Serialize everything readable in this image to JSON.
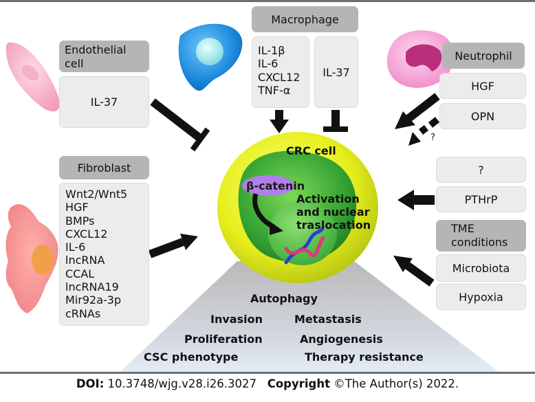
{
  "cells": {
    "endothelial": {
      "title": "Endothelial cell",
      "factors": [
        "IL-37"
      ]
    },
    "macrophage": {
      "title": "Macrophage",
      "factors_left": [
        "IL-1β",
        "IL-6",
        "CXCL12",
        "TNF-α"
      ],
      "factors_right": [
        "IL-37"
      ]
    },
    "neutrophil": {
      "title": "Neutrophil",
      "factors": [
        "HGF",
        "OPN"
      ],
      "unknown_mark": "?"
    },
    "fibroblast": {
      "title": "Fibroblast",
      "factors": [
        "Wnt2/Wnt5",
        "HGF",
        "BMPs",
        "CXCL12",
        "IL-6",
        "lncRNA",
        "CCAL",
        "lncRNA19",
        "Mir92a-3p",
        "cRNAs"
      ]
    },
    "unknown": {
      "title": "?",
      "factors": [
        "PTHrP"
      ]
    },
    "tme": {
      "title": "TME conditions",
      "factors": [
        "Microbiota",
        "Hypoxia"
      ]
    }
  },
  "crc": {
    "title": "CRC cell",
    "beta_catenin": "β-catenin",
    "activation": [
      "Activation",
      "and nuclear",
      "traslocation"
    ]
  },
  "outcomes": [
    "Autophagy",
    "Invasion",
    "Metastasis",
    "Proliferation",
    "Angiogenesis",
    "CSC phenotype",
    "Therapy resistance"
  ],
  "footer": {
    "doi_label": "DOI:",
    "doi": "10.3748/wjg.v28.i26.3027",
    "copyright_label": "Copyright",
    "copyright": "©The Author(s) 2022."
  },
  "colors": {
    "header_box": "#b5b5b5",
    "factor_box": "#ececec",
    "arrow": "#111111",
    "crc_outer": "#e8f020",
    "crc_inner": "#2ea82e",
    "beta_catenin": "#b07fe8",
    "macrophage": "#1e90e0",
    "neutrophil": "#e070c0",
    "endothelial": "#f4a9c4",
    "fibroblast": "#f08080"
  }
}
